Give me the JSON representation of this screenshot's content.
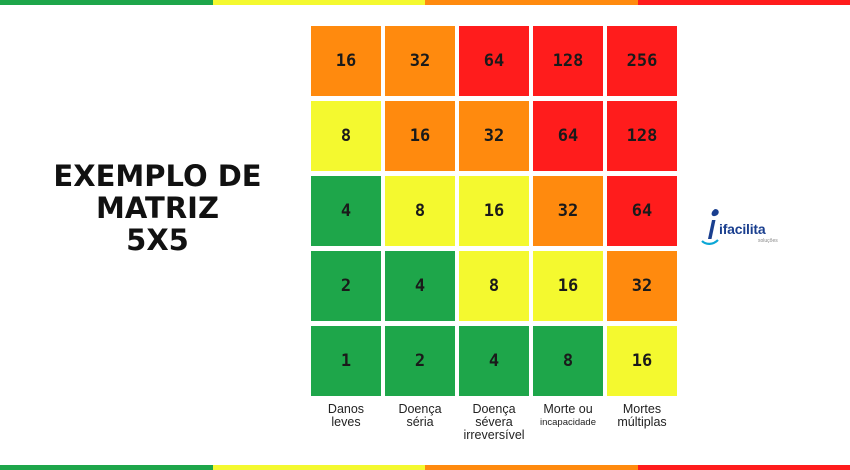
{
  "colors": {
    "green": "#1ea64a",
    "yellow": "#f4f92f",
    "orange": "#ff8a0e",
    "red": "#ff1c1c"
  },
  "stripe": [
    "green",
    "yellow",
    "orange",
    "red"
  ],
  "title": {
    "line1": "EXEMPLO DE",
    "line2": "MATRIZ",
    "line3": "5X5"
  },
  "matrix": {
    "rows": [
      [
        {
          "value": "16",
          "color": "orange"
        },
        {
          "value": "32",
          "color": "orange"
        },
        {
          "value": "64",
          "color": "red"
        },
        {
          "value": "128",
          "color": "red"
        },
        {
          "value": "256",
          "color": "red"
        }
      ],
      [
        {
          "value": "8",
          "color": "yellow"
        },
        {
          "value": "16",
          "color": "orange"
        },
        {
          "value": "32",
          "color": "orange"
        },
        {
          "value": "64",
          "color": "red"
        },
        {
          "value": "128",
          "color": "red"
        }
      ],
      [
        {
          "value": "4",
          "color": "green"
        },
        {
          "value": "8",
          "color": "yellow"
        },
        {
          "value": "16",
          "color": "yellow"
        },
        {
          "value": "32",
          "color": "orange"
        },
        {
          "value": "64",
          "color": "red"
        }
      ],
      [
        {
          "value": "2",
          "color": "green"
        },
        {
          "value": "4",
          "color": "green"
        },
        {
          "value": "8",
          "color": "yellow"
        },
        {
          "value": "16",
          "color": "yellow"
        },
        {
          "value": "32",
          "color": "orange"
        }
      ],
      [
        {
          "value": "1",
          "color": "green"
        },
        {
          "value": "2",
          "color": "green"
        },
        {
          "value": "4",
          "color": "green"
        },
        {
          "value": "8",
          "color": "green"
        },
        {
          "value": "16",
          "color": "yellow"
        }
      ]
    ]
  },
  "columns": [
    {
      "line1": "Danos",
      "line2": "leves",
      "line3": ""
    },
    {
      "line1": "Doença",
      "line2": "séria",
      "line3": ""
    },
    {
      "line1": "Doença",
      "line2": "sévera",
      "line3": "irreversível"
    },
    {
      "line1": "Morte ou",
      "line2": "incapacidade",
      "line3": ""
    },
    {
      "line1": "Mortes",
      "line2": "múltiplas",
      "line3": ""
    }
  ],
  "logo": {
    "icon": "ifacilita-logo-icon",
    "name": "ifacilita",
    "tagline": "soluções"
  }
}
